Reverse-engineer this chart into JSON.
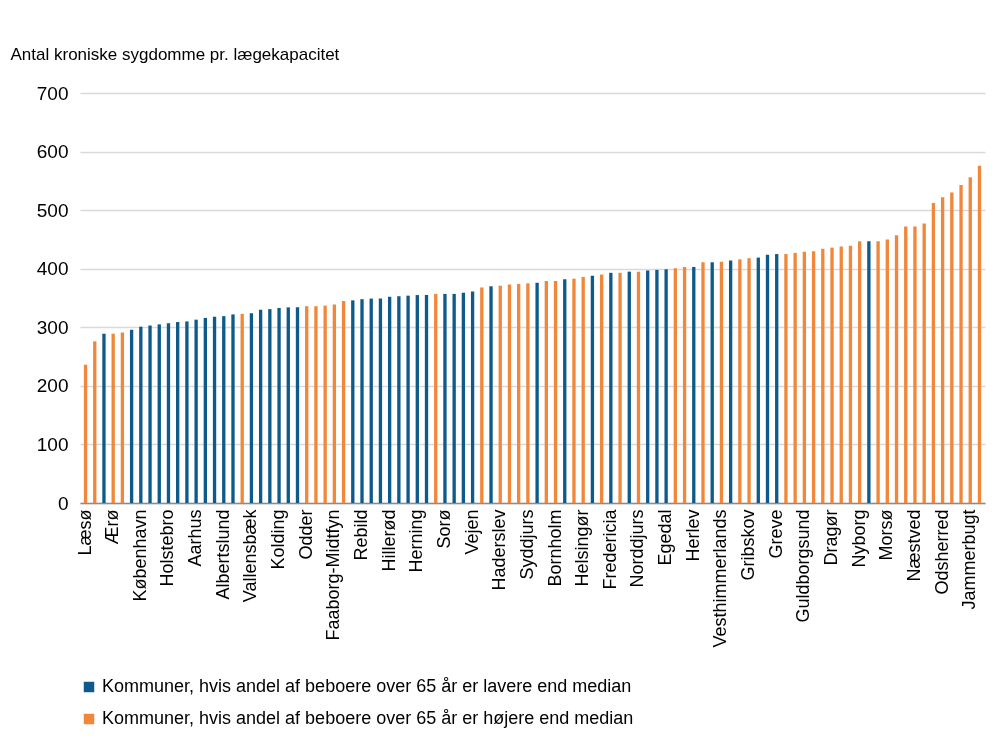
{
  "chart_data": {
    "type": "bar",
    "ylabel": "Antal kroniske sygdomme pr. lægekapacitet",
    "categories": [
      "Læsø",
      null,
      null,
      "Ærø",
      null,
      null,
      "København",
      null,
      null,
      "Holstebro",
      null,
      null,
      "Aarhus",
      null,
      null,
      "Albertslund",
      null,
      null,
      "Vallensbæk",
      null,
      null,
      "Kolding",
      null,
      null,
      "Odder",
      null,
      null,
      "Faaborg-Midtfyn",
      null,
      null,
      "Rebild",
      null,
      null,
      "Hillerød",
      null,
      null,
      "Herning",
      null,
      null,
      "Sorø",
      null,
      null,
      "Vejen",
      null,
      null,
      "Haderslev",
      null,
      null,
      "Syddjurs",
      null,
      null,
      "Bornholm",
      null,
      null,
      "Helsingør",
      null,
      null,
      "Fredericia",
      null,
      null,
      "Norddjurs",
      null,
      null,
      "Egedal",
      null,
      null,
      "Herlev",
      null,
      null,
      "Vesthimmerlands",
      null,
      null,
      "Gribskov",
      null,
      null,
      "Greve",
      null,
      null,
      "Guldborgsund",
      null,
      null,
      "Dragør",
      null,
      null,
      "Nyborg",
      null,
      null,
      "Morsø",
      null,
      null,
      "Næstved",
      null,
      null,
      "Odsherred",
      null,
      null,
      "Jammerbugt",
      null
    ],
    "series": [
      {
        "name": "Kommuner, hvis andel af beboere over 65 år er lavere end median",
        "color": "#0e5a8a",
        "values": [
          null,
          null,
          289,
          null,
          null,
          296,
          301,
          303,
          305,
          307,
          309,
          310,
          313,
          316,
          318,
          319,
          322,
          null,
          324,
          330,
          331,
          333,
          334,
          334,
          null,
          null,
          null,
          null,
          null,
          346,
          348,
          349,
          349,
          352,
          353,
          354,
          355,
          355,
          null,
          357,
          357,
          359,
          361,
          null,
          370,
          null,
          null,
          null,
          null,
          376,
          null,
          null,
          382,
          null,
          null,
          388,
          null,
          393,
          null,
          395,
          null,
          397,
          398,
          399,
          null,
          null,
          403,
          null,
          411,
          null,
          414,
          null,
          null,
          419,
          424,
          425,
          null,
          null,
          null,
          null,
          null,
          null,
          null,
          null,
          null,
          447,
          null,
          null,
          null,
          null,
          null,
          null,
          null,
          null,
          null,
          null,
          null,
          null
        ]
      },
      {
        "name": "Kommuner, hvis andel af beboere over 65 år er højere end median",
        "color": "#f0873a",
        "values": [
          236,
          276,
          null,
          289,
          291,
          null,
          null,
          null,
          null,
          null,
          null,
          null,
          null,
          null,
          null,
          null,
          null,
          323,
          null,
          null,
          null,
          null,
          null,
          null,
          336,
          336,
          337,
          339,
          345,
          null,
          null,
          null,
          null,
          null,
          null,
          null,
          null,
          null,
          357,
          null,
          null,
          null,
          null,
          368,
          null,
          371,
          373,
          374,
          375,
          null,
          379,
          379,
          null,
          383,
          386,
          null,
          390,
          null,
          393,
          null,
          395,
          null,
          null,
          null,
          401,
          403,
          null,
          411,
          null,
          412,
          null,
          416,
          418,
          null,
          null,
          null,
          425,
          427,
          429,
          430,
          434,
          436,
          438,
          439,
          447,
          null,
          447,
          450,
          457,
          472,
          472,
          477,
          512,
          522,
          530,
          543,
          556,
          576
        ]
      }
    ],
    "ylim": [
      0,
      700
    ],
    "yticks": [
      0,
      100,
      200,
      300,
      400,
      500,
      600,
      700
    ],
    "grid": "y",
    "legend": "bottom"
  }
}
